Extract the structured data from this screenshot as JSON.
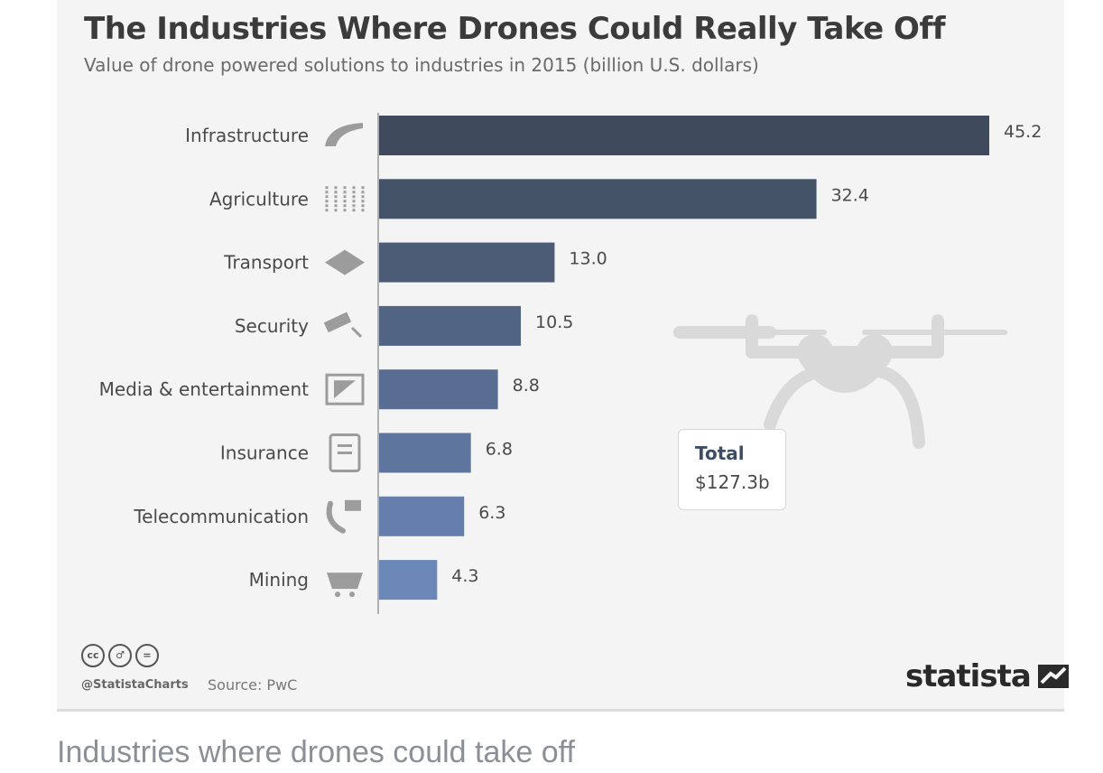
{
  "header": {
    "title": "The Industries Where Drones Could Really Take Off",
    "subtitle": "Value of drone powered solutions to industries in 2015 (billion U.S. dollars)"
  },
  "total": {
    "label": "Total",
    "value": "$127.3b"
  },
  "footer": {
    "handle": "@StatistaCharts",
    "source": "Source: PwC",
    "brand": "statista",
    "license_icons": [
      "creative-commons-icon",
      "attribution-icon",
      "no-derivatives-icon"
    ]
  },
  "caption": "Industries where drones could take off",
  "chart_data": {
    "type": "bar",
    "orientation": "horizontal",
    "categories": [
      "Infrastructure",
      "Agriculture",
      "Transport",
      "Security",
      "Media & entertainment",
      "Insurance",
      "Telecommunication",
      "Mining"
    ],
    "values": [
      45.2,
      32.4,
      13.0,
      10.5,
      8.8,
      6.8,
      6.3,
      4.3
    ],
    "value_labels": [
      "45.2",
      "32.4",
      "13.0",
      "10.5",
      "8.8",
      "6.8",
      "6.3",
      "4.3"
    ],
    "icons": [
      "road-icon",
      "wheat-icon",
      "package-icon",
      "security-camera-icon",
      "film-icon",
      "document-icon",
      "phone-icon",
      "mine-cart-icon"
    ],
    "xlim": [
      0,
      45.2
    ],
    "grid": false,
    "colors": {
      "bar_top": "#3f4a5c",
      "bar_bottom": "#6b87b8",
      "background": "#f4f4f4"
    }
  }
}
